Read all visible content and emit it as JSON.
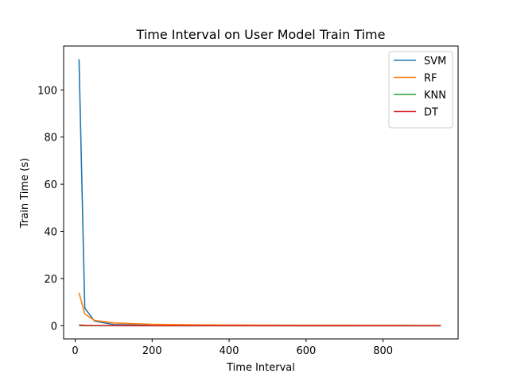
{
  "chart_data": {
    "type": "line",
    "title": "Time Interval on User Model Train Time",
    "xlabel": "Time Interval",
    "ylabel": "Train Time (s)",
    "xlim": [
      -30,
      995
    ],
    "ylim": [
      -5.6,
      118.6
    ],
    "xticks": [
      0,
      200,
      400,
      600,
      800
    ],
    "yticks": [
      0,
      20,
      40,
      60,
      80,
      100
    ],
    "grid": false,
    "legend_position": "top-right",
    "x": [
      10,
      25,
      50,
      100,
      200,
      300,
      400,
      500,
      600,
      700,
      800,
      900,
      950
    ],
    "series": [
      {
        "name": "SVM",
        "color": "#1f77b4",
        "values": [
          113,
          7.5,
          2.0,
          0.5,
          0.2,
          0.1,
          0.05,
          0.05,
          0.03,
          0.03,
          0.02,
          0.02,
          0.02
        ]
      },
      {
        "name": "RF",
        "color": "#ff7f0e",
        "values": [
          14,
          5.0,
          2.3,
          1.2,
          0.6,
          0.4,
          0.3,
          0.25,
          0.2,
          0.18,
          0.15,
          0.12,
          0.1
        ]
      },
      {
        "name": "KNN",
        "color": "#2ca02c",
        "values": [
          0.05,
          0.03,
          0.02,
          0.01,
          0.01,
          0.01,
          0.01,
          0.01,
          0.01,
          0.01,
          0.01,
          0.01,
          0.01
        ]
      },
      {
        "name": "DT",
        "color": "#d62728",
        "values": [
          0.3,
          0.15,
          0.08,
          0.05,
          0.03,
          0.02,
          0.02,
          0.02,
          0.02,
          0.02,
          0.02,
          0.02,
          0.02
        ]
      }
    ]
  }
}
